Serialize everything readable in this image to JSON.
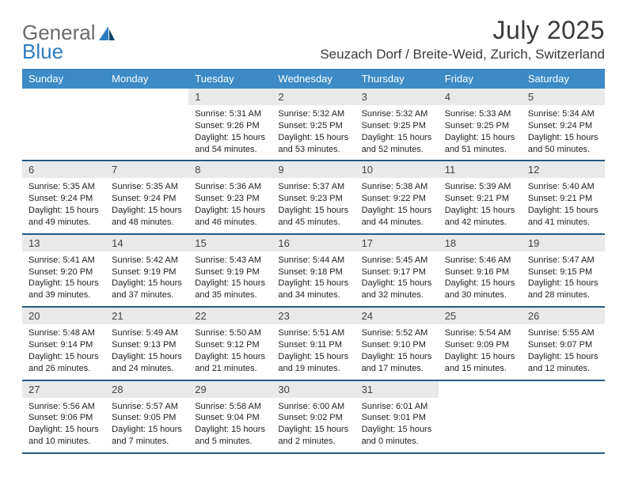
{
  "logo": {
    "text1": "General",
    "text2": "Blue"
  },
  "title": "July 2025",
  "location": "Seuzach Dorf / Breite-Weid, Zurich, Switzerland",
  "colors": {
    "header_bg": "#3c8ac6",
    "header_text": "#ffffff",
    "week_border": "#255a86",
    "daynum_bg": "#e9e9e9",
    "text": "#222222",
    "logo_gray": "#6a6a6a",
    "logo_blue": "#2f7dc0"
  },
  "day_names": [
    "Sunday",
    "Monday",
    "Tuesday",
    "Wednesday",
    "Thursday",
    "Friday",
    "Saturday"
  ],
  "weeks": [
    [
      {
        "n": "",
        "sr": "",
        "ss": "",
        "d1": "",
        "d2": ""
      },
      {
        "n": "",
        "sr": "",
        "ss": "",
        "d1": "",
        "d2": ""
      },
      {
        "n": "1",
        "sr": "Sunrise: 5:31 AM",
        "ss": "Sunset: 9:26 PM",
        "d1": "Daylight: 15 hours",
        "d2": "and 54 minutes."
      },
      {
        "n": "2",
        "sr": "Sunrise: 5:32 AM",
        "ss": "Sunset: 9:25 PM",
        "d1": "Daylight: 15 hours",
        "d2": "and 53 minutes."
      },
      {
        "n": "3",
        "sr": "Sunrise: 5:32 AM",
        "ss": "Sunset: 9:25 PM",
        "d1": "Daylight: 15 hours",
        "d2": "and 52 minutes."
      },
      {
        "n": "4",
        "sr": "Sunrise: 5:33 AM",
        "ss": "Sunset: 9:25 PM",
        "d1": "Daylight: 15 hours",
        "d2": "and 51 minutes."
      },
      {
        "n": "5",
        "sr": "Sunrise: 5:34 AM",
        "ss": "Sunset: 9:24 PM",
        "d1": "Daylight: 15 hours",
        "d2": "and 50 minutes."
      }
    ],
    [
      {
        "n": "6",
        "sr": "Sunrise: 5:35 AM",
        "ss": "Sunset: 9:24 PM",
        "d1": "Daylight: 15 hours",
        "d2": "and 49 minutes."
      },
      {
        "n": "7",
        "sr": "Sunrise: 5:35 AM",
        "ss": "Sunset: 9:24 PM",
        "d1": "Daylight: 15 hours",
        "d2": "and 48 minutes."
      },
      {
        "n": "8",
        "sr": "Sunrise: 5:36 AM",
        "ss": "Sunset: 9:23 PM",
        "d1": "Daylight: 15 hours",
        "d2": "and 46 minutes."
      },
      {
        "n": "9",
        "sr": "Sunrise: 5:37 AM",
        "ss": "Sunset: 9:23 PM",
        "d1": "Daylight: 15 hours",
        "d2": "and 45 minutes."
      },
      {
        "n": "10",
        "sr": "Sunrise: 5:38 AM",
        "ss": "Sunset: 9:22 PM",
        "d1": "Daylight: 15 hours",
        "d2": "and 44 minutes."
      },
      {
        "n": "11",
        "sr": "Sunrise: 5:39 AM",
        "ss": "Sunset: 9:21 PM",
        "d1": "Daylight: 15 hours",
        "d2": "and 42 minutes."
      },
      {
        "n": "12",
        "sr": "Sunrise: 5:40 AM",
        "ss": "Sunset: 9:21 PM",
        "d1": "Daylight: 15 hours",
        "d2": "and 41 minutes."
      }
    ],
    [
      {
        "n": "13",
        "sr": "Sunrise: 5:41 AM",
        "ss": "Sunset: 9:20 PM",
        "d1": "Daylight: 15 hours",
        "d2": "and 39 minutes."
      },
      {
        "n": "14",
        "sr": "Sunrise: 5:42 AM",
        "ss": "Sunset: 9:19 PM",
        "d1": "Daylight: 15 hours",
        "d2": "and 37 minutes."
      },
      {
        "n": "15",
        "sr": "Sunrise: 5:43 AM",
        "ss": "Sunset: 9:19 PM",
        "d1": "Daylight: 15 hours",
        "d2": "and 35 minutes."
      },
      {
        "n": "16",
        "sr": "Sunrise: 5:44 AM",
        "ss": "Sunset: 9:18 PM",
        "d1": "Daylight: 15 hours",
        "d2": "and 34 minutes."
      },
      {
        "n": "17",
        "sr": "Sunrise: 5:45 AM",
        "ss": "Sunset: 9:17 PM",
        "d1": "Daylight: 15 hours",
        "d2": "and 32 minutes."
      },
      {
        "n": "18",
        "sr": "Sunrise: 5:46 AM",
        "ss": "Sunset: 9:16 PM",
        "d1": "Daylight: 15 hours",
        "d2": "and 30 minutes."
      },
      {
        "n": "19",
        "sr": "Sunrise: 5:47 AM",
        "ss": "Sunset: 9:15 PM",
        "d1": "Daylight: 15 hours",
        "d2": "and 28 minutes."
      }
    ],
    [
      {
        "n": "20",
        "sr": "Sunrise: 5:48 AM",
        "ss": "Sunset: 9:14 PM",
        "d1": "Daylight: 15 hours",
        "d2": "and 26 minutes."
      },
      {
        "n": "21",
        "sr": "Sunrise: 5:49 AM",
        "ss": "Sunset: 9:13 PM",
        "d1": "Daylight: 15 hours",
        "d2": "and 24 minutes."
      },
      {
        "n": "22",
        "sr": "Sunrise: 5:50 AM",
        "ss": "Sunset: 9:12 PM",
        "d1": "Daylight: 15 hours",
        "d2": "and 21 minutes."
      },
      {
        "n": "23",
        "sr": "Sunrise: 5:51 AM",
        "ss": "Sunset: 9:11 PM",
        "d1": "Daylight: 15 hours",
        "d2": "and 19 minutes."
      },
      {
        "n": "24",
        "sr": "Sunrise: 5:52 AM",
        "ss": "Sunset: 9:10 PM",
        "d1": "Daylight: 15 hours",
        "d2": "and 17 minutes."
      },
      {
        "n": "25",
        "sr": "Sunrise: 5:54 AM",
        "ss": "Sunset: 9:09 PM",
        "d1": "Daylight: 15 hours",
        "d2": "and 15 minutes."
      },
      {
        "n": "26",
        "sr": "Sunrise: 5:55 AM",
        "ss": "Sunset: 9:07 PM",
        "d1": "Daylight: 15 hours",
        "d2": "and 12 minutes."
      }
    ],
    [
      {
        "n": "27",
        "sr": "Sunrise: 5:56 AM",
        "ss": "Sunset: 9:06 PM",
        "d1": "Daylight: 15 hours",
        "d2": "and 10 minutes."
      },
      {
        "n": "28",
        "sr": "Sunrise: 5:57 AM",
        "ss": "Sunset: 9:05 PM",
        "d1": "Daylight: 15 hours",
        "d2": "and 7 minutes."
      },
      {
        "n": "29",
        "sr": "Sunrise: 5:58 AM",
        "ss": "Sunset: 9:04 PM",
        "d1": "Daylight: 15 hours",
        "d2": "and 5 minutes."
      },
      {
        "n": "30",
        "sr": "Sunrise: 6:00 AM",
        "ss": "Sunset: 9:02 PM",
        "d1": "Daylight: 15 hours",
        "d2": "and 2 minutes."
      },
      {
        "n": "31",
        "sr": "Sunrise: 6:01 AM",
        "ss": "Sunset: 9:01 PM",
        "d1": "Daylight: 15 hours",
        "d2": "and 0 minutes."
      },
      {
        "n": "",
        "sr": "",
        "ss": "",
        "d1": "",
        "d2": ""
      },
      {
        "n": "",
        "sr": "",
        "ss": "",
        "d1": "",
        "d2": ""
      }
    ]
  ]
}
